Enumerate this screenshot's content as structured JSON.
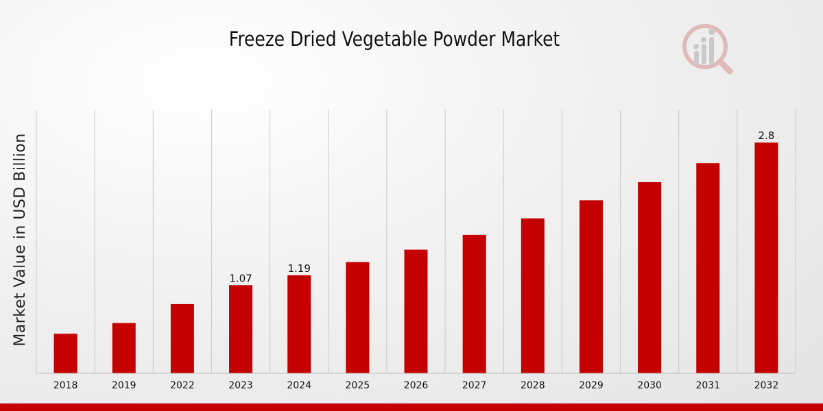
{
  "chart_data": {
    "type": "bar",
    "title": "Freeze Dried Vegetable Powder Market",
    "xlabel": "",
    "ylabel": "Market Value in USD Billion",
    "categories": [
      "2018",
      "2019",
      "2022",
      "2023",
      "2024",
      "2025",
      "2026",
      "2027",
      "2028",
      "2029",
      "2030",
      "2031",
      "2032"
    ],
    "values": [
      0.48,
      0.61,
      0.84,
      1.07,
      1.19,
      1.35,
      1.5,
      1.68,
      1.88,
      2.1,
      2.32,
      2.55,
      2.8
    ],
    "data_labels": {
      "3": "1.07",
      "4": "1.19",
      "12": "2.8"
    },
    "ylim": [
      0,
      3.2
    ],
    "bar_color": "#c40000",
    "grid": "vertical"
  },
  "colors": {
    "accent": "#c40000",
    "grid": "#c8c8c8",
    "text": "#111111"
  },
  "logo": {
    "icon": "analytics-magnifier-icon"
  }
}
